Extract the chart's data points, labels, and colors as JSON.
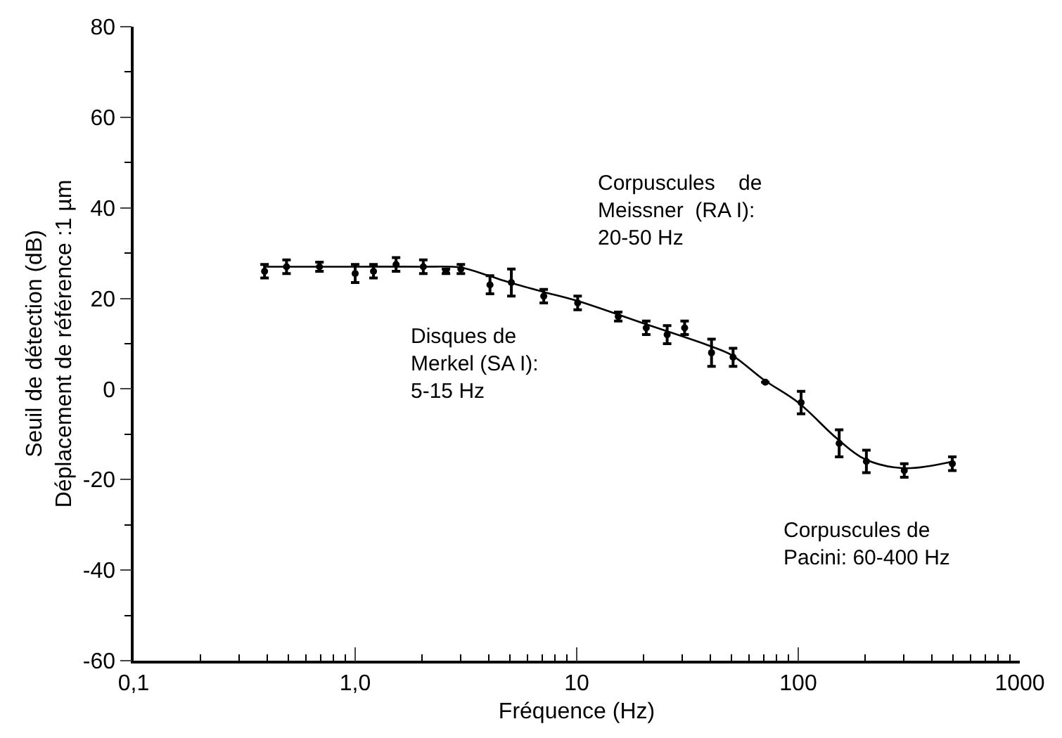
{
  "chart_data": {
    "type": "scatter",
    "xlabel": "Fréquence (Hz)",
    "ylabel": "Seuil de détection (dB)\nDéplacement de référence :1 µm",
    "log": "x",
    "xlim": [
      0.1,
      1000
    ],
    "xticks": [
      {
        "value": 0.1,
        "label": "0,1"
      },
      {
        "value": 1,
        "label": "1,0"
      },
      10,
      100,
      1000
    ],
    "ylim": [
      -60,
      80
    ],
    "yticks": [
      -60,
      -40,
      -20,
      0,
      20,
      40,
      60,
      80
    ],
    "marker": "circle",
    "series": [
      {
        "color": "#000000",
        "x": [
          0.39,
          0.49,
          0.69,
          1.0,
          1.21,
          1.53,
          2.03,
          2.57,
          3.0,
          4.06,
          5.07,
          7.1,
          10.1,
          15.4,
          20.6,
          25.6,
          30.7,
          40.6,
          50.8,
          71,
          103,
          153,
          203,
          301,
          496
        ],
        "values": [
          26,
          27,
          27,
          25.5,
          26,
          27.5,
          27,
          26,
          26.5,
          23,
          23.5,
          20.5,
          19,
          16,
          13.5,
          12,
          13.5,
          8,
          7,
          1.5,
          -3,
          -12,
          -16,
          -18,
          -16.5
        ],
        "errors": [
          1.5,
          1.5,
          1,
          2,
          1.5,
          1.5,
          1.5,
          0.5,
          1,
          2,
          3,
          1.5,
          1.5,
          1,
          1.5,
          2,
          1.5,
          3,
          2,
          null,
          2.5,
          3,
          2.5,
          1.5,
          1.5
        ]
      },
      {
        "type": "line",
        "color": "#000000",
        "marker": "none",
        "x": [
          0.39,
          1.0,
          2.0,
          3.0,
          4.0,
          5.0,
          7.0,
          10,
          20,
          40,
          50,
          70,
          100,
          150,
          200,
          300,
          500
        ],
        "values": [
          27,
          27,
          27,
          26.8,
          25,
          23.5,
          21.5,
          19.5,
          14.5,
          9.5,
          7.5,
          2,
          -3,
          -11,
          -15.5,
          -17.5,
          -16
        ]
      }
    ],
    "annotations": [
      "Corpuscules    de\nMeissner  (RA I):\n20-50 Hz",
      "Disques de\nMerkel (SA I):\n5-15 Hz",
      "Corpuscules de\nPacini: 60-400 Hz"
    ]
  }
}
